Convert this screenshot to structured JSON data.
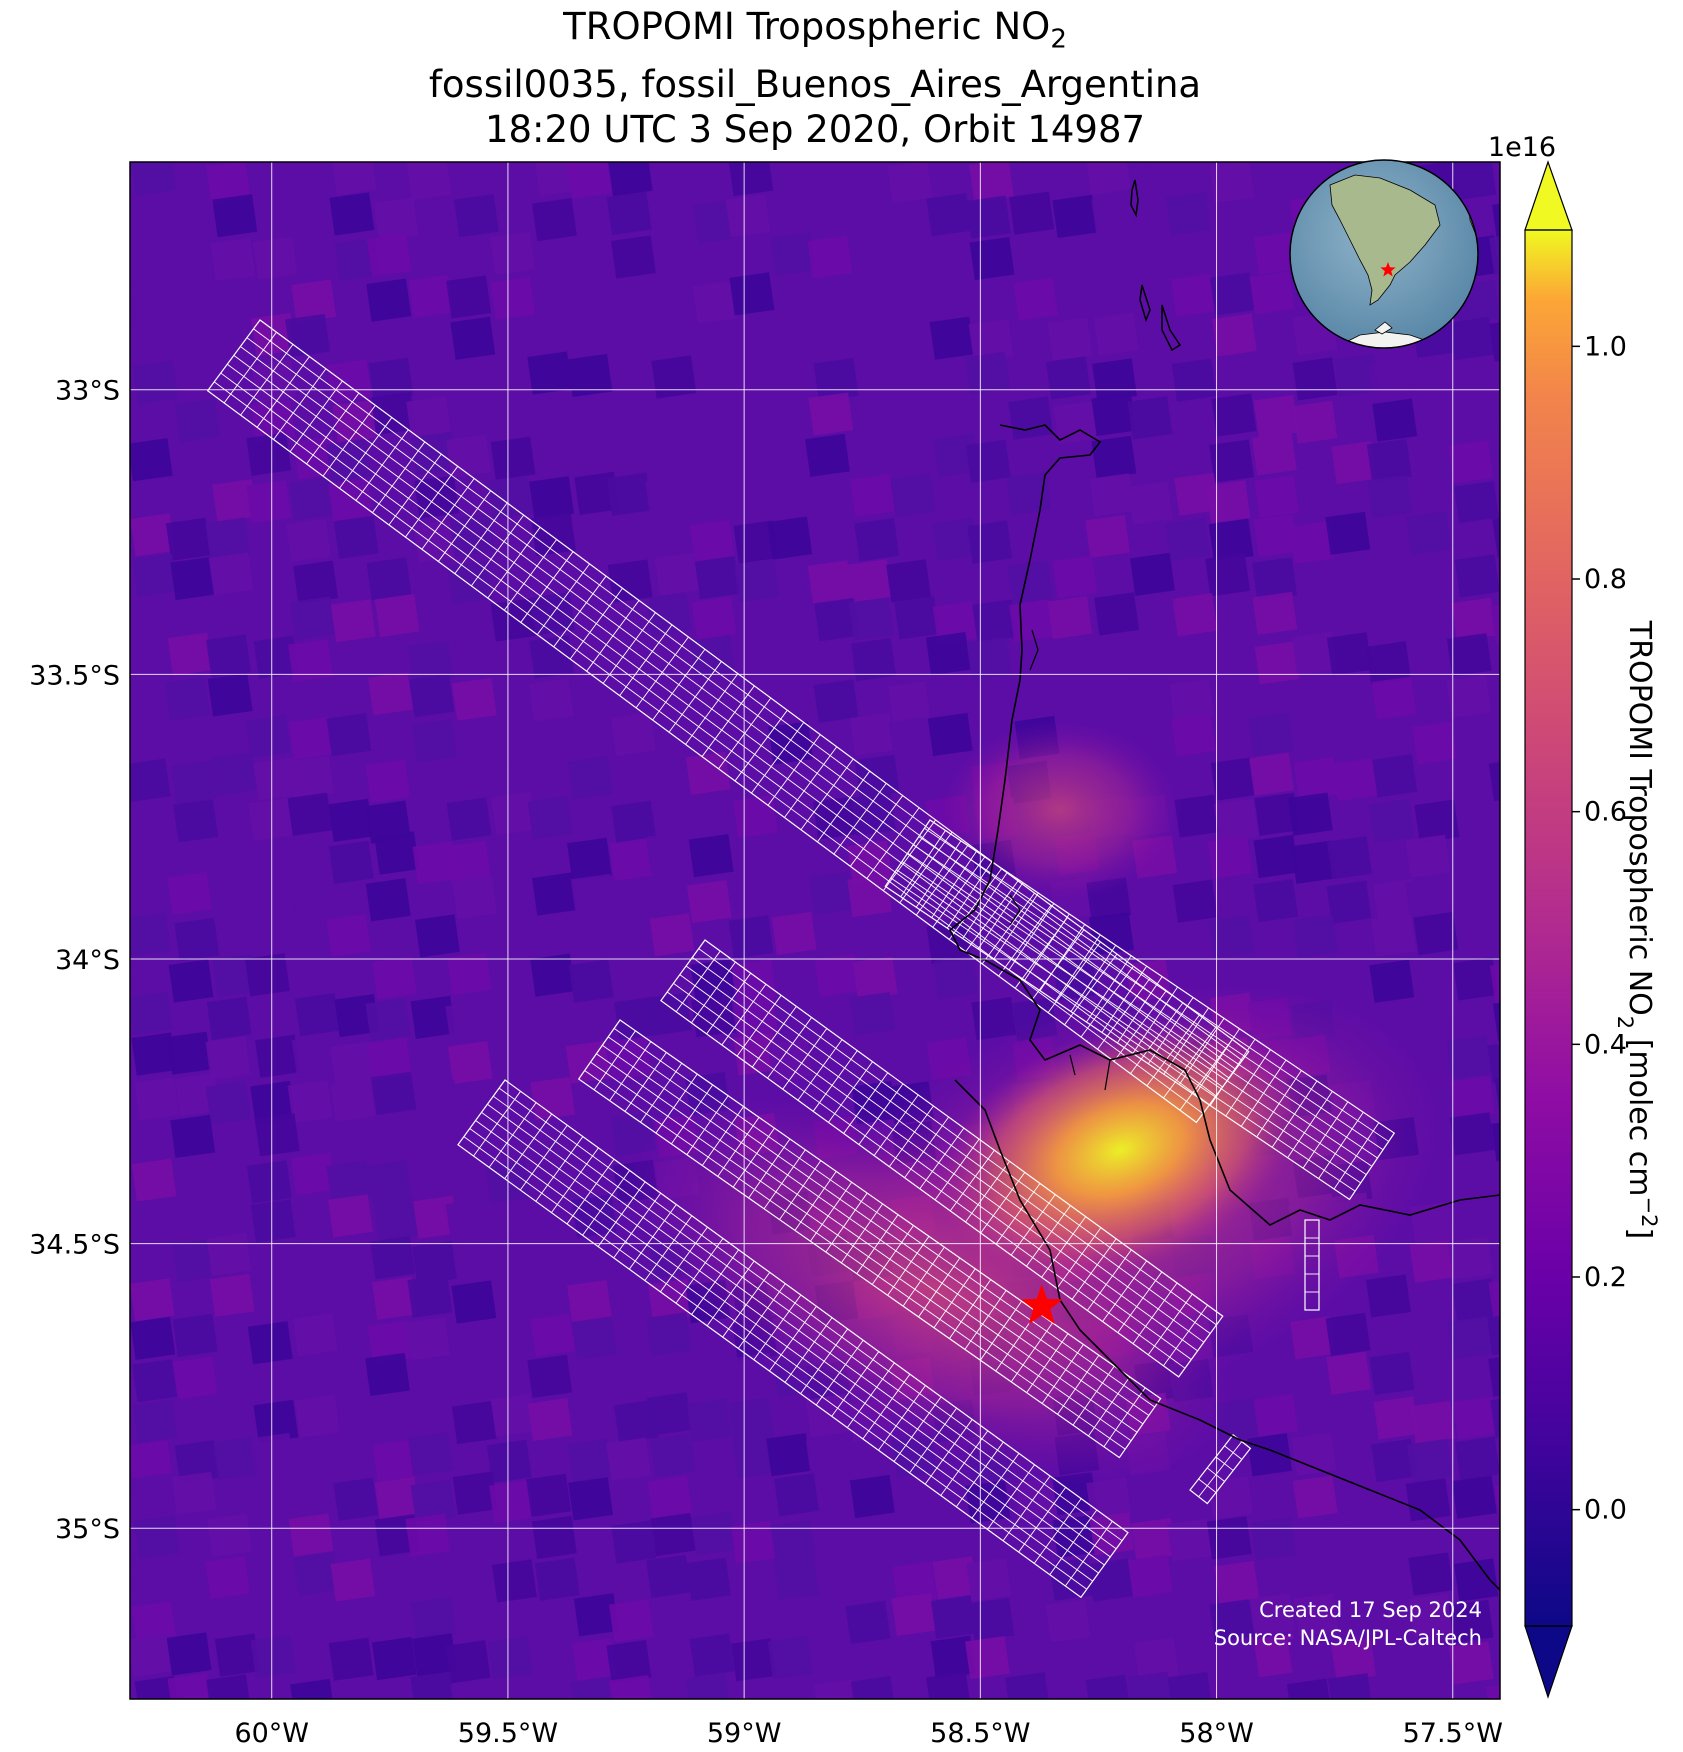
{
  "title": {
    "line1_prefix": "TROPOMI Tropospheric NO",
    "line1_sub": "2",
    "line2": "fossil0035, fossil_Buenos_Aires_Argentina",
    "line3": "18:20 UTC 3 Sep 2020, Orbit 14987"
  },
  "map": {
    "lon_ticks": [
      {
        "value": -60.0,
        "label": "60°W"
      },
      {
        "value": -59.5,
        "label": "59.5°W"
      },
      {
        "value": -59.0,
        "label": "59°W"
      },
      {
        "value": -58.5,
        "label": "58.5°W"
      },
      {
        "value": -58.0,
        "label": "58°W"
      },
      {
        "value": -57.5,
        "label": "57.5°W"
      }
    ],
    "lat_ticks": [
      {
        "value": -33.0,
        "label": "33°S"
      },
      {
        "value": -33.5,
        "label": "33.5°S"
      },
      {
        "value": -34.0,
        "label": "34°S"
      },
      {
        "value": -34.5,
        "label": "34.5°S"
      },
      {
        "value": -35.0,
        "label": "35°S"
      }
    ],
    "extent": {
      "lon_min": -60.3,
      "lon_max": -57.4,
      "lat_min": -35.3,
      "lat_max": -32.6
    },
    "target": {
      "name": "fossil_Buenos_Aires_Argentina",
      "lon": -58.37,
      "lat": -34.61,
      "marker_color": "#ff0000"
    },
    "gridline_color": "#ffffff",
    "grid": true
  },
  "colorbar": {
    "label_prefix": "TROPOMI Tropospheric NO",
    "label_sub": "2",
    "label_units": " [molec cm",
    "label_exp": "−2",
    "label_close": "]",
    "scale_exponent": "1e16",
    "ticks": [
      "0.0",
      "0.2",
      "0.4",
      "0.6",
      "0.8",
      "1.0"
    ],
    "tick_values": [
      0.0,
      0.2,
      0.4,
      0.6,
      0.8,
      1.0
    ],
    "vmin": -0.1,
    "vmax": 1.1,
    "extend": "both",
    "colormap": "plasma"
  },
  "credits": {
    "created": "Created 17 Sep 2024",
    "source": "Source: NASA/JPL-Caltech"
  },
  "colors": {
    "background_no2": "#5b0da6",
    "hotspot": "#f5e33c",
    "coastline": "#000000",
    "target_footprint": "#ffffff"
  }
}
